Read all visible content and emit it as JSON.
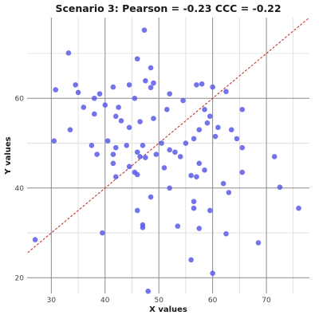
{
  "chart_data": {
    "type": "scatter",
    "title": "Scenario 3: Pearson = -0.23 CCC = -0.22",
    "xlabel": "X values",
    "ylabel": "Y values",
    "xlim": [
      25.5,
      78
    ],
    "ylim": [
      16.5,
      78
    ],
    "x_major_ticks": [
      30,
      40,
      50,
      60,
      70
    ],
    "y_major_ticks": [
      20,
      40,
      60
    ],
    "x_minor_ticks": [
      35,
      45,
      55,
      65,
      75
    ],
    "y_minor_ticks": [
      30,
      50,
      70
    ],
    "grid": true,
    "reference_line": {
      "type": "identity",
      "label": "y = x",
      "style": "dashed"
    },
    "colors": {
      "points": "#5b5be8",
      "line": "#c0392b",
      "grid_major": "#8a8a8a",
      "grid_minor": "#cfcfcf"
    },
    "points": [
      {
        "x": 47.3,
        "y": 75.2
      },
      {
        "x": 33.2,
        "y": 70.1
      },
      {
        "x": 46.0,
        "y": 68.8
      },
      {
        "x": 48.5,
        "y": 66.8
      },
      {
        "x": 47.5,
        "y": 63.9
      },
      {
        "x": 49.0,
        "y": 63.4
      },
      {
        "x": 48.5,
        "y": 62.4
      },
      {
        "x": 44.5,
        "y": 63.0
      },
      {
        "x": 41.5,
        "y": 62.5
      },
      {
        "x": 34.5,
        "y": 63.0
      },
      {
        "x": 30.8,
        "y": 61.9
      },
      {
        "x": 35.0,
        "y": 61.3
      },
      {
        "x": 39.0,
        "y": 61.0
      },
      {
        "x": 38.0,
        "y": 60.0
      },
      {
        "x": 36.0,
        "y": 58.0
      },
      {
        "x": 42.5,
        "y": 58.0
      },
      {
        "x": 45.5,
        "y": 60.0
      },
      {
        "x": 40.0,
        "y": 58.5
      },
      {
        "x": 42.0,
        "y": 56.0
      },
      {
        "x": 38.0,
        "y": 56.5
      },
      {
        "x": 43.0,
        "y": 55.0
      },
      {
        "x": 44.5,
        "y": 53.5
      },
      {
        "x": 46.5,
        "y": 54.8
      },
      {
        "x": 49.0,
        "y": 55.5
      },
      {
        "x": 51.5,
        "y": 57.5
      },
      {
        "x": 52.0,
        "y": 61.0
      },
      {
        "x": 54.5,
        "y": 59.5
      },
      {
        "x": 57.0,
        "y": 63.0
      },
      {
        "x": 58.0,
        "y": 63.2
      },
      {
        "x": 60.0,
        "y": 62.5
      },
      {
        "x": 62.5,
        "y": 61.5
      },
      {
        "x": 58.5,
        "y": 57.5
      },
      {
        "x": 59.5,
        "y": 56.0
      },
      {
        "x": 65.5,
        "y": 57.5
      },
      {
        "x": 59.0,
        "y": 54.5
      },
      {
        "x": 57.5,
        "y": 53.0
      },
      {
        "x": 61.0,
        "y": 53.5
      },
      {
        "x": 60.5,
        "y": 51.5
      },
      {
        "x": 63.5,
        "y": 53.0
      },
      {
        "x": 64.5,
        "y": 51.0
      },
      {
        "x": 65.5,
        "y": 49.0
      },
      {
        "x": 56.5,
        "y": 51.0
      },
      {
        "x": 55.0,
        "y": 50.0
      },
      {
        "x": 33.5,
        "y": 53.0
      },
      {
        "x": 30.5,
        "y": 50.5
      },
      {
        "x": 37.5,
        "y": 49.5
      },
      {
        "x": 38.5,
        "y": 47.5
      },
      {
        "x": 40.5,
        "y": 50.5
      },
      {
        "x": 41.5,
        "y": 47.5
      },
      {
        "x": 42.0,
        "y": 49.0
      },
      {
        "x": 44.0,
        "y": 49.5
      },
      {
        "x": 46.0,
        "y": 48.0
      },
      {
        "x": 47.0,
        "y": 49.5
      },
      {
        "x": 46.5,
        "y": 47.0
      },
      {
        "x": 47.5,
        "y": 46.8
      },
      {
        "x": 49.5,
        "y": 47.5
      },
      {
        "x": 50.5,
        "y": 50.0
      },
      {
        "x": 52.0,
        "y": 48.5
      },
      {
        "x": 53.0,
        "y": 48.0
      },
      {
        "x": 54.0,
        "y": 47.0
      },
      {
        "x": 41.5,
        "y": 45.5
      },
      {
        "x": 42.0,
        "y": 42.5
      },
      {
        "x": 44.5,
        "y": 44.8
      },
      {
        "x": 45.5,
        "y": 43.5
      },
      {
        "x": 46.0,
        "y": 43.0
      },
      {
        "x": 51.0,
        "y": 44.5
      },
      {
        "x": 57.5,
        "y": 45.5
      },
      {
        "x": 58.5,
        "y": 44.0
      },
      {
        "x": 56.0,
        "y": 42.8
      },
      {
        "x": 57.0,
        "y": 42.5
      },
      {
        "x": 65.5,
        "y": 43.5
      },
      {
        "x": 71.5,
        "y": 47.0
      },
      {
        "x": 52.0,
        "y": 40.0
      },
      {
        "x": 62.0,
        "y": 41.0
      },
      {
        "x": 72.5,
        "y": 40.2
      },
      {
        "x": 63.0,
        "y": 39.0
      },
      {
        "x": 48.5,
        "y": 38.0
      },
      {
        "x": 56.5,
        "y": 37.0
      },
      {
        "x": 56.5,
        "y": 35.5
      },
      {
        "x": 46.0,
        "y": 35.0
      },
      {
        "x": 59.5,
        "y": 35.0
      },
      {
        "x": 76.0,
        "y": 35.5
      },
      {
        "x": 47.0,
        "y": 31.8
      },
      {
        "x": 47.0,
        "y": 31.2
      },
      {
        "x": 53.5,
        "y": 31.5
      },
      {
        "x": 57.5,
        "y": 31.0
      },
      {
        "x": 39.5,
        "y": 30.0
      },
      {
        "x": 62.5,
        "y": 29.8
      },
      {
        "x": 68.5,
        "y": 27.8
      },
      {
        "x": 27.0,
        "y": 28.5
      },
      {
        "x": 56.0,
        "y": 24.0
      },
      {
        "x": 60.0,
        "y": 21.0
      },
      {
        "x": 48.0,
        "y": 17.0
      }
    ]
  }
}
